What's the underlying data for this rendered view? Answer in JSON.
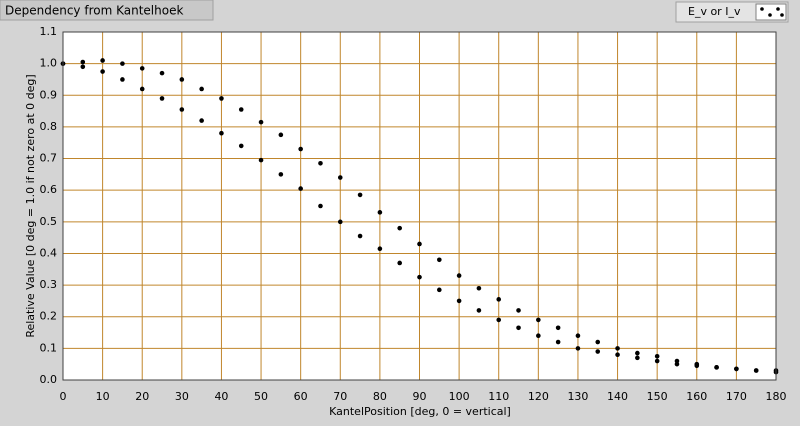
{
  "chart_data": {
    "type": "scatter",
    "title": "Dependency from Kantelhoek",
    "xlabel": "KantelPosition [deg, 0 = vertical]",
    "ylabel": "Relative Value [0 deg = 1.0 if not zero at 0 deg]",
    "xlim": [
      0,
      180
    ],
    "ylim": [
      0,
      1.1
    ],
    "xticks": [
      0,
      10,
      20,
      30,
      40,
      50,
      60,
      70,
      80,
      90,
      100,
      110,
      120,
      130,
      140,
      150,
      160,
      170,
      180
    ],
    "yticks": [
      {
        "value": 0,
        "label": "0.0"
      },
      0.1,
      0.2,
      0.3,
      0.4,
      0.5,
      0.6,
      0.7,
      0.8,
      0.9,
      {
        "value": 1,
        "label": "1.0"
      },
      1.1
    ],
    "grid": true,
    "legend": "top-right",
    "series": [
      {
        "name": "E_v or I_v",
        "color": "#000000",
        "x": [
          0,
          5,
          10,
          15,
          20,
          25,
          30,
          35,
          40,
          45,
          50,
          55,
          60,
          65,
          70,
          75,
          80,
          85,
          90,
          95,
          100,
          105,
          110,
          115,
          120,
          125,
          130,
          135,
          140,
          145,
          150,
          155,
          160,
          165,
          170,
          175,
          180,
          0,
          5,
          10,
          15,
          20,
          25,
          30,
          35,
          40,
          45,
          50,
          55,
          60,
          65,
          70,
          75,
          80,
          85,
          90,
          95,
          100,
          105,
          110,
          115,
          120,
          125,
          130,
          135,
          140,
          145,
          150,
          155,
          160,
          165,
          170,
          175,
          180
        ],
        "values": [
          1.0,
          1.005,
          1.01,
          1.0,
          0.985,
          0.97,
          0.95,
          0.92,
          0.89,
          0.855,
          0.815,
          0.775,
          0.73,
          0.685,
          0.64,
          0.585,
          0.53,
          0.48,
          0.43,
          0.38,
          0.33,
          0.29,
          0.255,
          0.22,
          0.19,
          0.165,
          0.14,
          0.12,
          0.1,
          0.085,
          0.075,
          0.06,
          0.05,
          0.04,
          0.035,
          0.03,
          0.025,
          1.0,
          0.99,
          0.975,
          0.95,
          0.92,
          0.89,
          0.855,
          0.82,
          0.78,
          0.74,
          0.695,
          0.65,
          0.605,
          0.55,
          0.5,
          0.455,
          0.415,
          0.37,
          0.325,
          0.285,
          0.25,
          0.22,
          0.19,
          0.165,
          0.14,
          0.12,
          0.1,
          0.09,
          0.08,
          0.07,
          0.06,
          0.05,
          0.045,
          0.04,
          0.035,
          0.03,
          0.03
        ]
      }
    ]
  }
}
